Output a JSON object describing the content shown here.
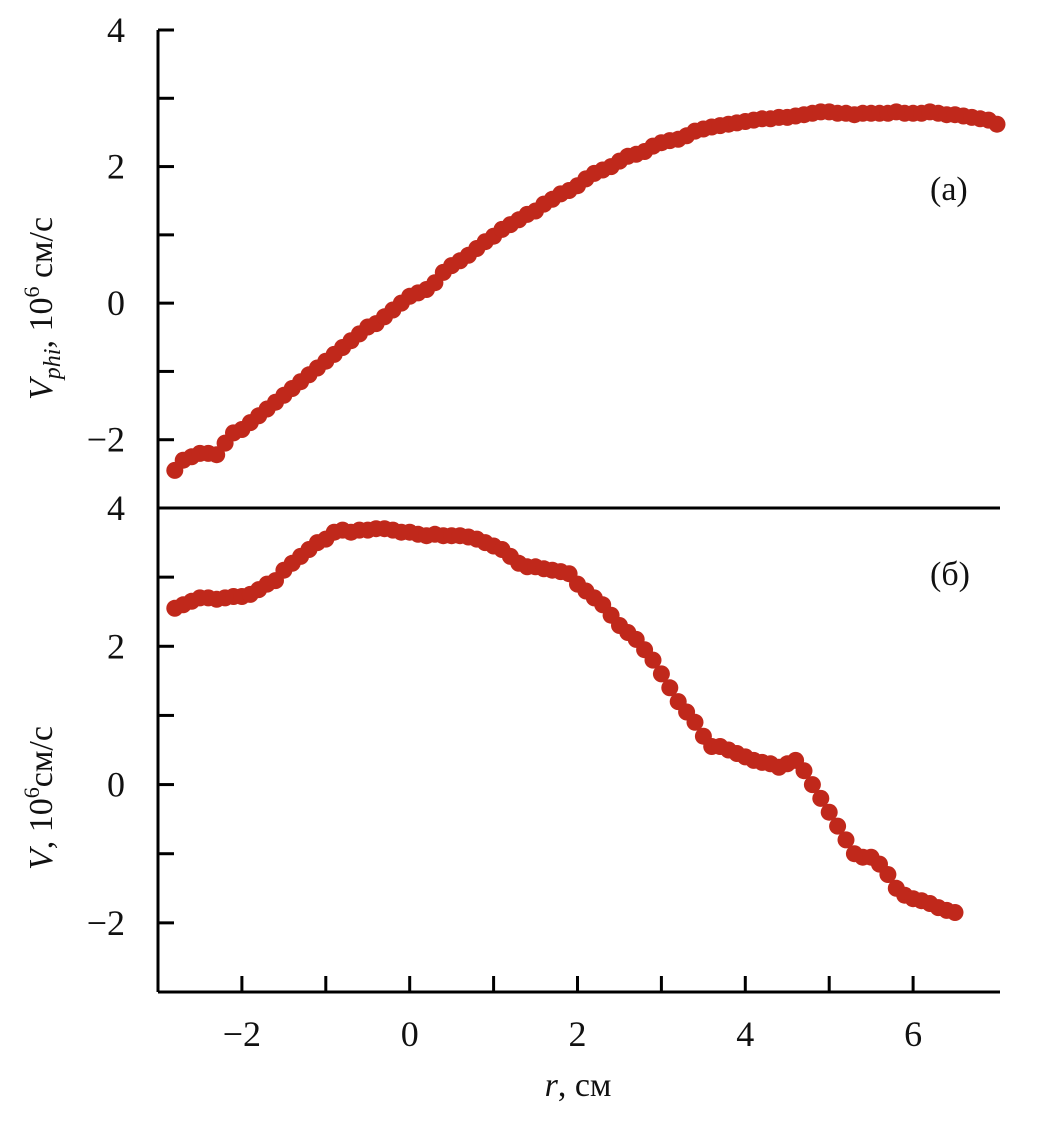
{
  "figure": {
    "marker_color": "#c0281b",
    "axis_color": "#000000",
    "xlabel_var": "r",
    "xlabel_unit": ", см"
  },
  "chart_data": [
    {
      "type": "scatter",
      "panel_label": "(а)",
      "ylabel_var": "V",
      "ylabel_sub": "phi",
      "ylabel_sep": ", ",
      "ylabel_pow_base": "10",
      "ylabel_pow_exp": "6",
      "ylabel_unit": " см/с",
      "xlim": [
        -3,
        7
      ],
      "ylim": [
        -3,
        4
      ],
      "xticks": [
        -2,
        0,
        2,
        4,
        6
      ],
      "xtick_labels": [
        "−2",
        "0",
        "2",
        "4",
        "6"
      ],
      "yticks": [
        -2,
        0,
        2,
        4
      ],
      "ytick_labels": [
        "−2",
        "0",
        "2",
        "4"
      ],
      "x": [
        -2.8,
        -2.7,
        -2.6,
        -2.5,
        -2.4,
        -2.3,
        -2.2,
        -2.1,
        -2.0,
        -1.9,
        -1.8,
        -1.7,
        -1.6,
        -1.5,
        -1.4,
        -1.3,
        -1.2,
        -1.1,
        -1.0,
        -0.9,
        -0.8,
        -0.7,
        -0.6,
        -0.5,
        -0.4,
        -0.3,
        -0.2,
        -0.1,
        0.0,
        0.1,
        0.2,
        0.3,
        0.4,
        0.5,
        0.6,
        0.7,
        0.8,
        0.9,
        1.0,
        1.1,
        1.2,
        1.3,
        1.4,
        1.5,
        1.6,
        1.7,
        1.8,
        1.9,
        2.0,
        2.1,
        2.2,
        2.3,
        2.4,
        2.5,
        2.6,
        2.7,
        2.8,
        2.9,
        3.0,
        3.1,
        3.2,
        3.3,
        3.4,
        3.5,
        3.6,
        3.7,
        3.8,
        3.9,
        4.0,
        4.1,
        4.2,
        4.3,
        4.4,
        4.5,
        4.6,
        4.7,
        4.8,
        4.9,
        5.0,
        5.1,
        5.2,
        5.3,
        5.4,
        5.5,
        5.6,
        5.7,
        5.8,
        5.9,
        6.0,
        6.1,
        6.2,
        6.3,
        6.4,
        6.5,
        6.6,
        6.7,
        6.8,
        6.9,
        7.0
      ],
      "y": [
        -2.45,
        -2.3,
        -2.25,
        -2.2,
        -2.2,
        -2.22,
        -2.05,
        -1.9,
        -1.85,
        -1.75,
        -1.65,
        -1.55,
        -1.45,
        -1.35,
        -1.25,
        -1.15,
        -1.05,
        -0.95,
        -0.85,
        -0.75,
        -0.65,
        -0.55,
        -0.45,
        -0.35,
        -0.3,
        -0.2,
        -0.1,
        0.0,
        0.1,
        0.15,
        0.2,
        0.3,
        0.45,
        0.55,
        0.62,
        0.7,
        0.8,
        0.9,
        0.98,
        1.08,
        1.15,
        1.22,
        1.3,
        1.35,
        1.45,
        1.52,
        1.6,
        1.65,
        1.72,
        1.82,
        1.9,
        1.95,
        2.0,
        2.08,
        2.15,
        2.18,
        2.22,
        2.3,
        2.35,
        2.38,
        2.4,
        2.45,
        2.52,
        2.55,
        2.58,
        2.6,
        2.62,
        2.64,
        2.66,
        2.68,
        2.7,
        2.7,
        2.72,
        2.72,
        2.74,
        2.76,
        2.78,
        2.8,
        2.8,
        2.78,
        2.78,
        2.76,
        2.78,
        2.78,
        2.78,
        2.78,
        2.8,
        2.78,
        2.78,
        2.78,
        2.8,
        2.78,
        2.76,
        2.76,
        2.74,
        2.72,
        2.7,
        2.68,
        2.62
      ]
    },
    {
      "type": "scatter",
      "panel_label": "(б)",
      "ylabel_var": "V",
      "ylabel_sep": ", ",
      "ylabel_pow_base": "10",
      "ylabel_pow_exp": "6",
      "ylabel_unit": "см/с",
      "xlim": [
        -3,
        7
      ],
      "ylim": [
        -3,
        4
      ],
      "xticks": [
        -2,
        0,
        2,
        4,
        6
      ],
      "xtick_labels": [
        "−2",
        "0",
        "2",
        "4",
        "6"
      ],
      "yticks": [
        -2,
        0,
        2,
        4
      ],
      "ytick_labels": [
        "−2",
        "0",
        "2",
        "4"
      ],
      "x": [
        -2.8,
        -2.7,
        -2.6,
        -2.5,
        -2.4,
        -2.3,
        -2.2,
        -2.1,
        -2.0,
        -1.9,
        -1.8,
        -1.7,
        -1.6,
        -1.5,
        -1.4,
        -1.3,
        -1.2,
        -1.1,
        -1.0,
        -0.9,
        -0.8,
        -0.7,
        -0.6,
        -0.5,
        -0.4,
        -0.3,
        -0.2,
        -0.1,
        0.0,
        0.1,
        0.2,
        0.3,
        0.4,
        0.5,
        0.6,
        0.7,
        0.8,
        0.9,
        1.0,
        1.1,
        1.2,
        1.3,
        1.4,
        1.5,
        1.6,
        1.7,
        1.8,
        1.9,
        2.0,
        2.1,
        2.2,
        2.3,
        2.4,
        2.5,
        2.6,
        2.7,
        2.8,
        2.9,
        3.0,
        3.1,
        3.2,
        3.3,
        3.4,
        3.5,
        3.6,
        3.7,
        3.8,
        3.9,
        4.0,
        4.1,
        4.2,
        4.3,
        4.4,
        4.5,
        4.6,
        4.7,
        4.8,
        4.9,
        5.0,
        5.1,
        5.2,
        5.3,
        5.4,
        5.5,
        5.6,
        5.7,
        5.8,
        5.9,
        6.0,
        6.1,
        6.2,
        6.3,
        6.4,
        6.5
      ],
      "y": [
        2.55,
        2.6,
        2.65,
        2.7,
        2.7,
        2.68,
        2.7,
        2.72,
        2.72,
        2.75,
        2.82,
        2.9,
        2.95,
        3.1,
        3.2,
        3.3,
        3.4,
        3.5,
        3.55,
        3.65,
        3.68,
        3.65,
        3.68,
        3.68,
        3.7,
        3.7,
        3.68,
        3.65,
        3.65,
        3.62,
        3.6,
        3.62,
        3.6,
        3.6,
        3.6,
        3.58,
        3.55,
        3.5,
        3.45,
        3.4,
        3.3,
        3.2,
        3.15,
        3.15,
        3.12,
        3.1,
        3.08,
        3.05,
        2.9,
        2.8,
        2.7,
        2.6,
        2.45,
        2.3,
        2.2,
        2.1,
        1.95,
        1.8,
        1.6,
        1.4,
        1.2,
        1.05,
        0.9,
        0.7,
        0.55,
        0.55,
        0.5,
        0.45,
        0.4,
        0.35,
        0.32,
        0.3,
        0.25,
        0.3,
        0.35,
        0.2,
        0.0,
        -0.2,
        -0.4,
        -0.6,
        -0.8,
        -1.0,
        -1.05,
        -1.05,
        -1.15,
        -1.3,
        -1.5,
        -1.6,
        -1.65,
        -1.68,
        -1.72,
        -1.78,
        -1.82,
        -1.85
      ]
    }
  ]
}
